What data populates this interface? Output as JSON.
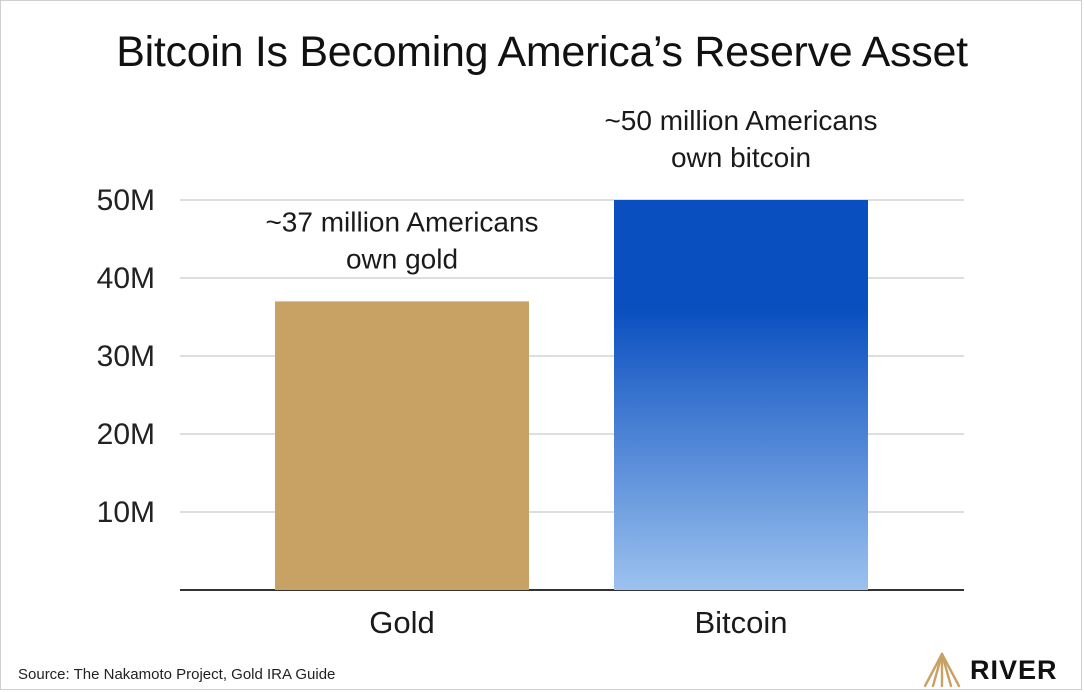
{
  "title": "Bitcoin Is Becoming America’s Reserve Asset",
  "source": "Source: The Nakamoto Project, Gold IRA Guide",
  "logo": {
    "text": "RIVER",
    "icon": "river-logo-icon"
  },
  "colors": {
    "gold": "#C8A264",
    "bitcoin_top": "#0A4FC0",
    "bitcoin_bottom": "#9CC2EE",
    "grid": "#d4d4d4",
    "axis": "#333333"
  },
  "chart_data": {
    "type": "bar",
    "categories": [
      "Gold",
      "Bitcoin"
    ],
    "values": [
      37,
      50
    ],
    "ylim": [
      0,
      50
    ],
    "yticks": [
      10,
      20,
      30,
      40,
      50
    ],
    "ytick_labels": [
      "10M",
      "20M",
      "30M",
      "40M",
      "50M"
    ],
    "grid": true,
    "annotations": [
      [
        "~37 million Americans",
        "own gold"
      ],
      [
        "~50 million Americans",
        "own bitcoin"
      ]
    ]
  }
}
